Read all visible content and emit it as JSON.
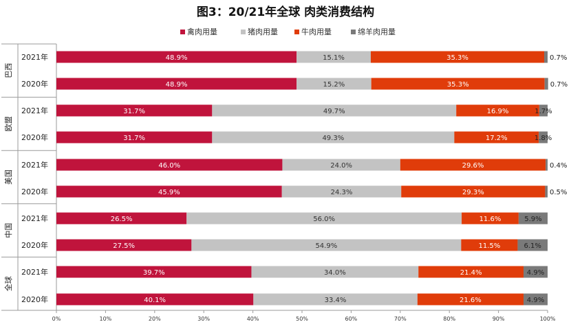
{
  "chart_data": {
    "type": "bar",
    "orientation": "horizontal-stacked-100",
    "title": "图3：20/21年全球 肉类消费结构",
    "series": [
      {
        "name": "禽肉用量",
        "color": "#c0143c"
      },
      {
        "name": "猪肉用量",
        "color": "#c3c3c3"
      },
      {
        "name": "牛肉用量",
        "color": "#e03c0a"
      },
      {
        "name": "绵羊肉用量",
        "color": "#7a7a7a"
      }
    ],
    "groups": [
      {
        "name": "巴西",
        "rows": [
          {
            "year": "2021年",
            "values": [
              48.9,
              15.1,
              35.3,
              0.7
            ],
            "labels": [
              "48.9%",
              "15.1%",
              "35.3%",
              "0.7%"
            ]
          },
          {
            "year": "2020年",
            "values": [
              48.9,
              15.2,
              35.3,
              0.7
            ],
            "labels": [
              "48.9%",
              "15.2%",
              "35.3%",
              "0.7%"
            ]
          }
        ]
      },
      {
        "name": "欧盟",
        "rows": [
          {
            "year": "2021年",
            "values": [
              31.7,
              49.7,
              16.9,
              1.7
            ],
            "labels": [
              "31.7%",
              "49.7%",
              "16.9%",
              "1.7%"
            ]
          },
          {
            "year": "2020年",
            "values": [
              31.7,
              49.3,
              17.2,
              1.8
            ],
            "labels": [
              "31.7%",
              "49.3%",
              "17.2%",
              "1.8%"
            ]
          }
        ]
      },
      {
        "name": "美国",
        "rows": [
          {
            "year": "2021年",
            "values": [
              46.0,
              24.0,
              29.6,
              0.4
            ],
            "labels": [
              "46.0%",
              "24.0%",
              "29.6%",
              "0.4%"
            ]
          },
          {
            "year": "2020年",
            "values": [
              45.9,
              24.3,
              29.3,
              0.5
            ],
            "labels": [
              "45.9%",
              "24.3%",
              "29.3%",
              "0.5%"
            ]
          }
        ]
      },
      {
        "name": "中国",
        "rows": [
          {
            "year": "2021年",
            "values": [
              26.5,
              56.0,
              11.6,
              5.9
            ],
            "labels": [
              "26.5%",
              "56.0%",
              "11.6%",
              "5.9%"
            ]
          },
          {
            "year": "2020年",
            "values": [
              27.5,
              54.9,
              11.5,
              6.1
            ],
            "labels": [
              "27.5%",
              "54.9%",
              "11.5%",
              "6.1%"
            ]
          }
        ]
      },
      {
        "name": "全球",
        "rows": [
          {
            "year": "2021年",
            "values": [
              39.7,
              34.0,
              21.4,
              4.9
            ],
            "labels": [
              "39.7%",
              "34.0%",
              "21.4%",
              "4.9%"
            ]
          },
          {
            "year": "2020年",
            "values": [
              40.1,
              33.4,
              21.6,
              4.9
            ],
            "labels": [
              "40.1%",
              "33.4%",
              "21.6%",
              "4.9%"
            ]
          }
        ]
      }
    ],
    "x_ticks": [
      "0%",
      "10%",
      "20%",
      "30%",
      "40%",
      "50%",
      "60%",
      "70%",
      "80%",
      "90%",
      "100%"
    ],
    "xlim": [
      0,
      100
    ],
    "legend_position": "top-center",
    "grid": false
  }
}
